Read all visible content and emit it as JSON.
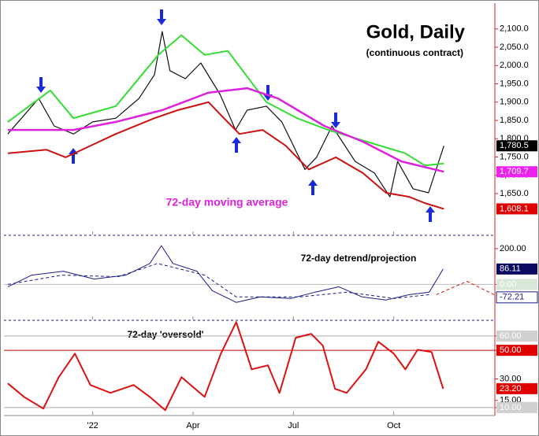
{
  "chart_data": [
    {
      "type": "line",
      "title": "Gold, Daily",
      "subtitle": "(continuous contract)",
      "annotation": "72-day moving average",
      "xlim": [
        -11.5,
        52.1
      ],
      "ylim": [
        1538,
        2162
      ],
      "yticks": [
        {
          "value": 2100,
          "label": "2,100.0"
        },
        {
          "value": 2050,
          "label": "2,050.0"
        },
        {
          "value": 2000,
          "label": "2,000.0"
        },
        {
          "value": 1950,
          "label": "1,950.0"
        },
        {
          "value": 1900,
          "label": "1,900.0"
        },
        {
          "value": 1850,
          "label": "1,850.0"
        },
        {
          "value": 1800,
          "label": "1,800.0"
        },
        {
          "value": 1750,
          "label": "1,750.0"
        },
        {
          "value": 1700,
          "label": "1,700.0"
        },
        {
          "value": 1650,
          "label": "1,650.0"
        }
      ],
      "series": [
        {
          "name": "Gold",
          "color": "#111111",
          "width": 1.2,
          "label_fill": "#000000",
          "label_text": "#ffffff",
          "last_label": "1,780.5",
          "x": [
            -11,
            -7,
            -5,
            -2.5,
            0,
            3,
            6,
            8,
            9,
            10,
            12,
            14,
            16.5,
            18.5,
            20,
            22.5,
            24.5,
            27.5,
            29,
            31,
            34,
            36.5,
            38.5,
            39.5,
            41.5,
            43.5,
            45.5
          ],
          "values": [
            1813,
            1910,
            1835,
            1813,
            1846,
            1856,
            1910,
            1975,
            2093,
            1986,
            1964,
            2007,
            1921,
            1824,
            1878,
            1889,
            1846,
            1716,
            1749,
            1835,
            1738,
            1706,
            1641,
            1738,
            1663,
            1652,
            1780.5
          ]
        },
        {
          "name": "Upper band",
          "color": "#33dd33",
          "width": 2,
          "x": [
            -11,
            -5.5,
            -2.5,
            3,
            8.5,
            11.5,
            14.5,
            17.5,
            22.5,
            26.5,
            30.5,
            35.5,
            40.5,
            43,
            45.5
          ],
          "values": [
            1846,
            1932,
            1856,
            1889,
            2029,
            2083,
            2029,
            2040,
            1900,
            1856,
            1824,
            1792,
            1760,
            1727,
            1732
          ]
        },
        {
          "name": "Lower band",
          "color": "#cc1111",
          "width": 2,
          "label_fill": "#e00000",
          "label_text": "#ffffff",
          "last_label": "1,608.1",
          "x": [
            -11,
            -6,
            -3.5,
            3,
            8,
            11,
            15,
            17,
            19,
            22,
            25,
            28,
            31.5,
            35,
            38,
            41,
            43,
            45.5
          ],
          "values": [
            1760,
            1770,
            1749,
            1813,
            1856,
            1878,
            1900,
            1856,
            1813,
            1824,
            1781,
            1716,
            1749,
            1706,
            1652,
            1641,
            1624,
            1608.1
          ]
        },
        {
          "name": "72-day moving average",
          "color": "#dd22dd",
          "width": 2.5,
          "label_fill": "#ee22ee",
          "label_text": "#ffffff",
          "last_label": "1,709.7",
          "x": [
            -11,
            -2.5,
            3,
            9,
            15,
            20,
            24,
            30,
            35,
            40,
            45.5
          ],
          "values": [
            1824,
            1824,
            1846,
            1878,
            1926,
            1938,
            1910,
            1835,
            1792,
            1738,
            1709.7
          ]
        }
      ]
    },
    {
      "type": "line",
      "annotation": "72-day detrend/projection",
      "xlim": [
        -11.5,
        52.1
      ],
      "ylim": [
        -196,
        270
      ],
      "yticks": [
        {
          "value": 200,
          "label": "200.00"
        },
        {
          "value": 0,
          "label": "0.00",
          "box": "#d8e8d8",
          "text_color": "#ffffff",
          "line": "#bbbbbb"
        }
      ],
      "level_labels": [
        {
          "value": -72.21,
          "label": "-72.21"
        }
      ],
      "series": [
        {
          "name": "Detrend",
          "color": "#1a1a8a",
          "width": 1,
          "label_fill": "#0a0a60",
          "label_text": "#ffffff",
          "last_label": "86.11",
          "x": [
            -11,
            -7.9,
            -3.8,
            0.2,
            4.3,
            7.4,
            8.9,
            10.4,
            13.5,
            15.5,
            18.6,
            21.7,
            25.7,
            28.8,
            31.9,
            34.9,
            38,
            41,
            43.6,
            45.4
          ],
          "values": [
            -13,
            52,
            74,
            30,
            52,
            117,
            217,
            117,
            74,
            -35,
            -100,
            -70,
            -78,
            -43,
            -13,
            -70,
            -87,
            -57,
            -43,
            86.11
          ]
        },
        {
          "name": "Smoothed",
          "color": "#1a1a8a",
          "width": 1,
          "dash": "4 3",
          "x": [
            -11,
            -4,
            3.3,
            8.4,
            14.5,
            18.6,
            26.8,
            32.9,
            39,
            43.6
          ],
          "values": [
            0,
            52,
            43,
            117,
            52,
            -70,
            -70,
            -43,
            -78,
            -57
          ]
        },
        {
          "name": "Projection",
          "color": "#dd1111",
          "width": 1,
          "dash": "4 3",
          "x": [
            44.5,
            48.5,
            52
          ],
          "values": [
            -57,
            17,
            -57
          ]
        }
      ]
    },
    {
      "type": "line",
      "annotation": "72-day 'oversold'",
      "xlim": [
        -11.5,
        52.1
      ],
      "ylim": [
        5,
        70.4
      ],
      "yticks": [
        {
          "value": 60,
          "label": "60.00",
          "box": "#d0d0d0",
          "text_color": "#ffffff",
          "line": "#aaaaaa"
        },
        {
          "value": 50,
          "label": "50.00",
          "box": "#e00000",
          "text_color": "#ffffff",
          "line": "#cc0000"
        },
        {
          "value": 30,
          "label": "30.00"
        },
        {
          "value": 15,
          "label": "15.00"
        },
        {
          "value": 10,
          "label": "10.00",
          "box": "#d0d0d0",
          "text_color": "#ffffff",
          "line": "#aaaaaa"
        }
      ],
      "xticks": [
        {
          "value": 0,
          "label": "'22"
        },
        {
          "value": 13,
          "label": "Apr"
        },
        {
          "value": 26,
          "label": "Jul"
        },
        {
          "value": 39,
          "label": "Oct"
        }
      ],
      "series": [
        {
          "name": "Oversold",
          "color": "#dd1111",
          "width": 2,
          "label_fill": "#e00000",
          "label_text": "#ffffff",
          "last_label": "23.20",
          "x": [
            -11,
            -8.9,
            -6.4,
            -4.4,
            -2.3,
            -0.3,
            2.3,
            5.3,
            7.4,
            9.4,
            11.5,
            14.5,
            16.6,
            18.6,
            20.6,
            22.7,
            24.2,
            26.3,
            28.3,
            29.8,
            31.4,
            32.9,
            35.4,
            37,
            39,
            40.5,
            42.1,
            43.9,
            45.4
          ],
          "values": [
            26.9,
            17.5,
            9.3,
            31.2,
            47.7,
            25.8,
            20.3,
            25.8,
            17.5,
            8.2,
            31.2,
            17.5,
            47.7,
            69.7,
            36.7,
            39.5,
            20.3,
            58.8,
            61.5,
            53.3,
            23.1,
            20.3,
            36.7,
            56,
            47.7,
            36.7,
            50.4,
            48.8,
            23.2
          ]
        }
      ]
    }
  ]
}
